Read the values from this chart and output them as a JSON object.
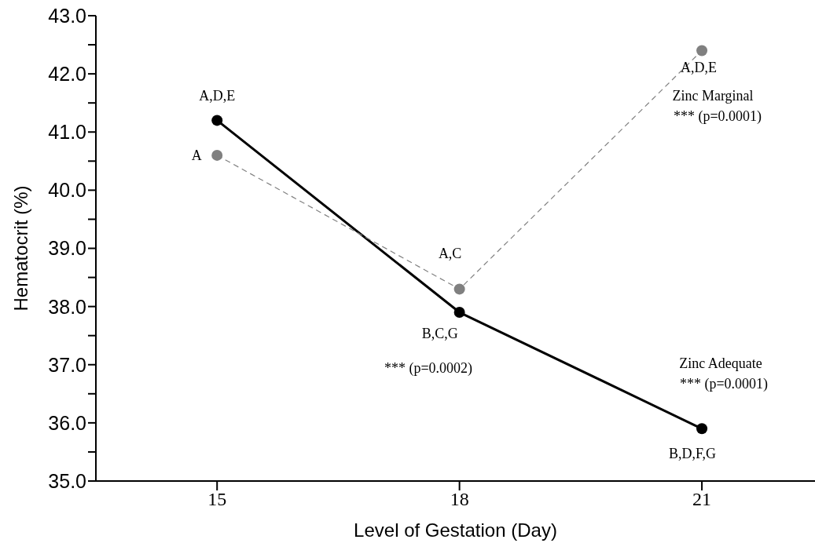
{
  "chart_data": {
    "type": "line",
    "xlabel": "Level of Gestation (Day)",
    "ylabel": "Hematocrit (%)",
    "x": [
      15,
      18,
      21
    ],
    "xlim": [
      13.5,
      22.4
    ],
    "xticks": [
      15,
      18,
      21
    ],
    "ylim": [
      35,
      43
    ],
    "yticks": [
      {
        "value": 35,
        "label": "35.0"
      },
      {
        "value": 35.5,
        "label": null
      },
      {
        "value": 36,
        "label": "36.0"
      },
      {
        "value": 36.5,
        "label": null
      },
      {
        "value": 37,
        "label": "37.0"
      },
      {
        "value": 37.5,
        "label": null
      },
      {
        "value": 38,
        "label": "38.0"
      },
      {
        "value": 38.5,
        "label": null
      },
      {
        "value": 39,
        "label": "39.0"
      },
      {
        "value": 39.5,
        "label": null
      },
      {
        "value": 40,
        "label": "40.0"
      },
      {
        "value": 40.5,
        "label": null
      },
      {
        "value": 41,
        "label": "41.0"
      },
      {
        "value": 41.5,
        "label": null
      },
      {
        "value": 42,
        "label": "42.0"
      },
      {
        "value": 42.5,
        "label": null
      },
      {
        "value": 43,
        "label": "43.0"
      }
    ],
    "marker": "circle",
    "series": [
      {
        "name": "Zinc Adequate",
        "color": "#000000",
        "line_style": "solid",
        "values": [
          41.2,
          37.9,
          35.9
        ]
      },
      {
        "name": "Zinc Marginal",
        "color": "#808080",
        "line_style": "dashed",
        "values": [
          40.6,
          38.3,
          42.4
        ]
      }
    ],
    "annotations": [
      {
        "text": "A,D,E",
        "x": 15,
        "y": 41.2
      },
      {
        "text": "A",
        "x": 15,
        "y": 40.6
      },
      {
        "text": "A,C",
        "x": 18,
        "y": 38.3
      },
      {
        "text": "B,C,G",
        "x": 18,
        "y": 37.9
      },
      {
        "text": "A,D,E",
        "x": 21,
        "y": 42.4
      },
      {
        "text": "B,D,F,G",
        "x": 21,
        "y": 35.9
      },
      "*** (p=0.0002)",
      "*** (p=0.0001)",
      "*** (p=0.0001)"
    ]
  }
}
